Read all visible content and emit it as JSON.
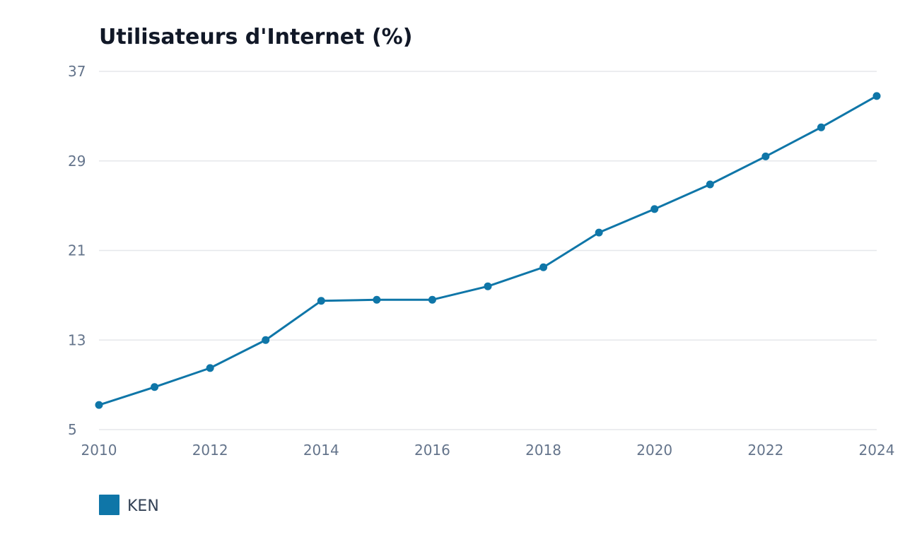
{
  "chart_data": {
    "type": "line",
    "title": "Utilisateurs d'Internet (%)",
    "xlabel": "",
    "ylabel": "",
    "x": [
      2010,
      2011,
      2012,
      2013,
      2014,
      2015,
      2016,
      2017,
      2018,
      2019,
      2020,
      2021,
      2022,
      2023,
      2024
    ],
    "xticks": [
      "2010",
      "2012",
      "2014",
      "2016",
      "2018",
      "2020",
      "2022",
      "2024"
    ],
    "yticks": [
      "5",
      "13",
      "21",
      "29",
      "37"
    ],
    "ylim": [
      5,
      37
    ],
    "xlim": [
      2010,
      2024
    ],
    "grid": true,
    "legend_position": "bottom-left",
    "series": [
      {
        "name": "KEN",
        "color": "#0f76a8",
        "values": [
          7.2,
          8.8,
          10.5,
          13.0,
          16.5,
          16.6,
          16.6,
          17.8,
          19.5,
          22.6,
          24.7,
          26.9,
          29.4,
          32.0,
          34.8
        ]
      }
    ]
  }
}
